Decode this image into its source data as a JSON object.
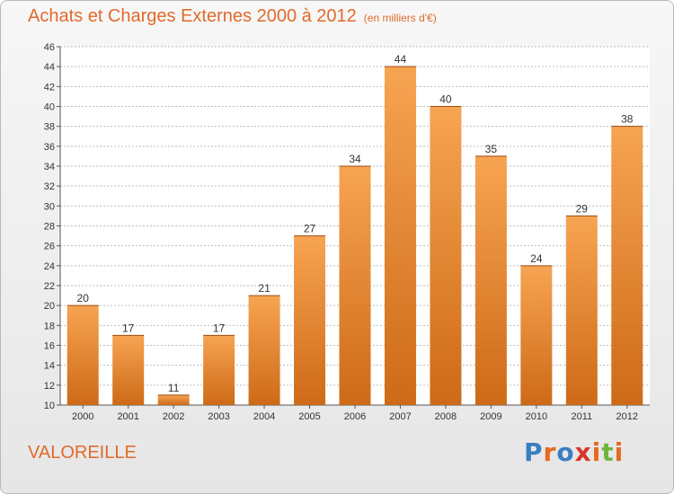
{
  "header": {
    "title": "Achats et Charges Externes 2000 à 2012",
    "subtitle": "(en milliers d'€)"
  },
  "footer": {
    "commune": "VALOREILLE",
    "logo_text": "Proxiti"
  },
  "colors": {
    "bar_light": "#f7a452",
    "bar_dark": "#cd6a17",
    "title": "#e16a2b",
    "grid": "#bdbdbd",
    "logo": [
      "#3a7ec2",
      "#e56a1f",
      "#3a7ec2",
      "#d9342b",
      "#e56a1f",
      "#6fb43c",
      "#e56a1f"
    ]
  },
  "chart_data": {
    "type": "bar",
    "title": "Achats et Charges Externes 2000 à 2012",
    "subtitle": "(en milliers d'€)",
    "categories": [
      "2000",
      "2001",
      "2002",
      "2003",
      "2004",
      "2005",
      "2006",
      "2007",
      "2008",
      "2009",
      "2010",
      "2011",
      "2012"
    ],
    "values": [
      20,
      17,
      11,
      17,
      21,
      27,
      34,
      44,
      40,
      35,
      24,
      29,
      38
    ],
    "ylim": [
      10,
      46
    ],
    "yticks": [
      10,
      12,
      14,
      16,
      18,
      20,
      22,
      24,
      26,
      28,
      30,
      32,
      34,
      36,
      38,
      40,
      42,
      44,
      46
    ],
    "grid": true,
    "data_labels": true
  }
}
